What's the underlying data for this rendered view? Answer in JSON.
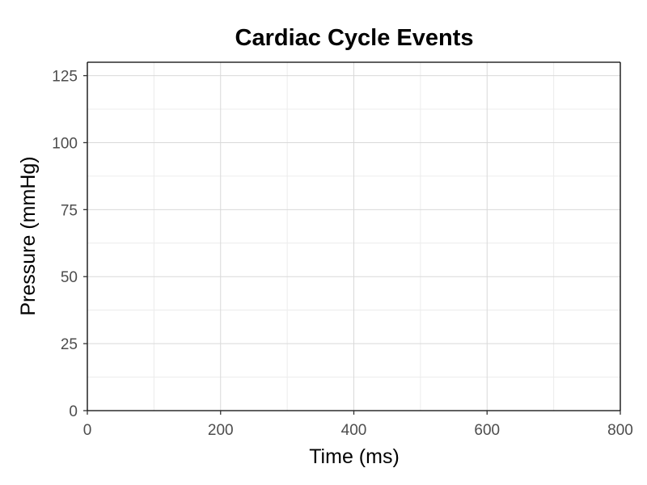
{
  "chart_data": {
    "type": "line",
    "title": "Cardiac Cycle Events",
    "xlabel": "Time (ms)",
    "ylabel": "Pressure (mmHg)",
    "xlim": [
      0,
      800
    ],
    "ylim": [
      0,
      130
    ],
    "x_ticks": [
      0,
      200,
      400,
      600,
      800
    ],
    "x_tick_labels": [
      "0",
      "200",
      "400",
      "600",
      "800"
    ],
    "y_ticks": [
      0,
      25,
      50,
      75,
      100,
      125
    ],
    "y_tick_labels": [
      "0",
      "25",
      "50",
      "75",
      "100",
      "125"
    ],
    "x_minor_ticks": [
      100,
      300,
      500,
      700
    ],
    "y_minor_ticks": [
      12.5,
      37.5,
      62.5,
      87.5,
      112.5
    ],
    "grid": true,
    "series": []
  }
}
